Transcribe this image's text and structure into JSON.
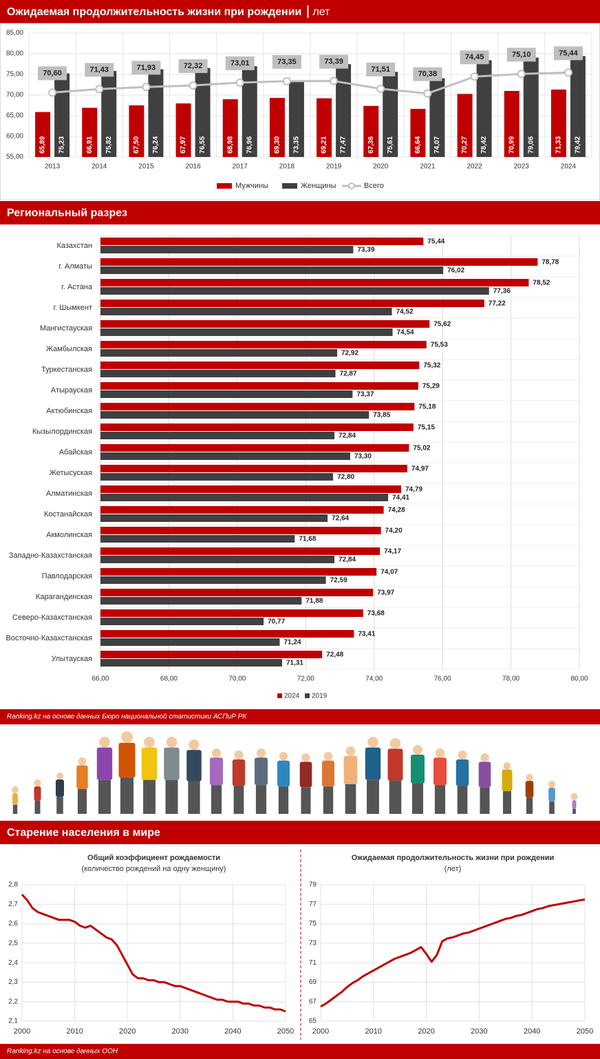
{
  "chart_data": [
    {
      "type": "bar",
      "title": "Ожидаемая продолжительность жизни при рождении",
      "unit": "лет",
      "categories": [
        "2013",
        "2014",
        "2015",
        "2016",
        "2017",
        "2018",
        "2019",
        "2020",
        "2021",
        "2022",
        "2023",
        "2024"
      ],
      "series": [
        {
          "name": "Мужчины",
          "color": "#c00000",
          "values": [
            65.89,
            66.91,
            67.5,
            67.97,
            68.98,
            69.3,
            69.21,
            67.36,
            66.64,
            70.27,
            70.99,
            71.33
          ],
          "value_labels": [
            "65,89",
            "66,91",
            "67,50",
            "67,97",
            "68,98",
            "69,30",
            "69,21",
            "67,36",
            "66,64",
            "70,27",
            "70,99",
            "71,33"
          ]
        },
        {
          "name": "Женщины",
          "color": "#404040",
          "values": [
            75.23,
            75.82,
            76.24,
            76.55,
            76.96,
            73.35,
            77.47,
            75.61,
            74.07,
            78.42,
            79.06,
            79.42
          ],
          "value_labels": [
            "75,23",
            "75,82",
            "76,24",
            "76,55",
            "76,96",
            "73,35",
            "77,47",
            "75,61",
            "74,07",
            "78,42",
            "79,06",
            "79,42"
          ]
        },
        {
          "name": "Всего",
          "type": "line",
          "color": "#bfbfbf",
          "values": [
            70.6,
            71.43,
            71.93,
            72.32,
            73.01,
            73.35,
            73.39,
            71.51,
            70.38,
            74.45,
            75.1,
            75.44
          ],
          "value_labels": [
            "70,60",
            "71,43",
            "71,93",
            "72,32",
            "73,01",
            "73,35",
            "73,39",
            "71,51",
            "70,38",
            "74,45",
            "75,10",
            "75,44"
          ]
        }
      ],
      "ylim": [
        55,
        85
      ],
      "yticks": [
        {
          "value": 55,
          "label": "55,00"
        },
        {
          "value": 60,
          "label": "60,00"
        },
        {
          "value": 65,
          "label": "65,00"
        },
        {
          "value": 70,
          "label": "70,00"
        },
        {
          "value": 75,
          "label": "75,00"
        },
        {
          "value": 80,
          "label": "80,00"
        },
        {
          "value": 85,
          "label": "85,00"
        }
      ],
      "grid": true,
      "legend": "bottom"
    },
    {
      "type": "hbar",
      "title": "Региональный разрез",
      "categories": [
        "Казахстан",
        "г. Алматы",
        "г. Астана",
        "г. Шымкент",
        "Мангистауская",
        "Жамбылская",
        "Туркестанская",
        "Атырауская",
        "Актюбинская",
        "Кызылординская",
        "Абайская",
        "Жетысуская",
        "Алматинская",
        "Костанайская",
        "Акмолинская",
        "Западно-Казахстанская",
        "Павлодарская",
        "Карагандинская",
        "Северо-Казахстанская",
        "Восточно-Казахстанская",
        "Улытауская"
      ],
      "series": [
        {
          "name": "2024",
          "color": "#c00000",
          "values": [
            75.44,
            78.78,
            78.52,
            77.22,
            75.62,
            75.53,
            75.32,
            75.29,
            75.18,
            75.15,
            75.02,
            74.97,
            74.79,
            74.28,
            74.2,
            74.17,
            74.07,
            73.97,
            73.68,
            73.41,
            72.48
          ],
          "value_labels": [
            "75,44",
            "78,78",
            "78,52",
            "77,22",
            "75,62",
            "75,53",
            "75,32",
            "75,29",
            "75,18",
            "75,15",
            "75,02",
            "74,97",
            "74,79",
            "74,28",
            "74,20",
            "74,17",
            "74,07",
            "73,97",
            "73,68",
            "73,41",
            "72,48"
          ]
        },
        {
          "name": "2019",
          "color": "#404040",
          "values": [
            73.39,
            76.02,
            77.36,
            74.52,
            74.54,
            72.92,
            72.87,
            73.37,
            73.85,
            72.84,
            73.3,
            72.8,
            74.41,
            72.64,
            71.68,
            72.84,
            72.59,
            71.88,
            70.77,
            71.24,
            71.31
          ],
          "value_labels": [
            "73,39",
            "76,02",
            "77,36",
            "74,52",
            "74,54",
            "72,92",
            "72,87",
            "73,37",
            "73,85",
            "72,84",
            "73,30",
            "72,80",
            "74,41",
            "72,64",
            "71,68",
            "72,84",
            "72,59",
            "71,88",
            "70,77",
            "71,24",
            "71,31"
          ]
        }
      ],
      "xlim": [
        66,
        80
      ],
      "xticks": [
        {
          "value": 66,
          "label": "66,00"
        },
        {
          "value": 68,
          "label": "68,00"
        },
        {
          "value": 70,
          "label": "70,00"
        },
        {
          "value": 72,
          "label": "72,00"
        },
        {
          "value": 74,
          "label": "74,00"
        },
        {
          "value": 76,
          "label": "76,00"
        },
        {
          "value": 78,
          "label": "78,00"
        },
        {
          "value": 80,
          "label": "80,00"
        }
      ],
      "grid": true,
      "legend": "bottom"
    },
    {
      "type": "line",
      "title": "Общий коэффициент рождаемости",
      "subtitle": "(количество рождений на одну женщину)",
      "color": "#c00000",
      "x": [
        2000,
        2001,
        2002,
        2003,
        2004,
        2005,
        2006,
        2007,
        2008,
        2009,
        2010,
        2011,
        2012,
        2013,
        2014,
        2015,
        2016,
        2017,
        2018,
        2019,
        2020,
        2021,
        2022,
        2023,
        2024,
        2025,
        2026,
        2027,
        2028,
        2029,
        2030,
        2031,
        2032,
        2033,
        2034,
        2035,
        2036,
        2037,
        2038,
        2039,
        2040,
        2041,
        2042,
        2043,
        2044,
        2045,
        2046,
        2047,
        2048,
        2049,
        2050
      ],
      "values": [
        2.75,
        2.72,
        2.68,
        2.66,
        2.65,
        2.64,
        2.63,
        2.62,
        2.62,
        2.62,
        2.61,
        2.59,
        2.58,
        2.59,
        2.57,
        2.55,
        2.53,
        2.52,
        2.49,
        2.44,
        2.39,
        2.34,
        2.32,
        2.32,
        2.31,
        2.31,
        2.3,
        2.3,
        2.29,
        2.28,
        2.28,
        2.27,
        2.26,
        2.25,
        2.24,
        2.23,
        2.22,
        2.21,
        2.21,
        2.2,
        2.2,
        2.2,
        2.19,
        2.19,
        2.18,
        2.18,
        2.17,
        2.17,
        2.16,
        2.16,
        2.15
      ],
      "xlim": [
        2000,
        2050
      ],
      "xticks": [
        2000,
        2010,
        2020,
        2030,
        2040,
        2050
      ],
      "ylim": [
        2.1,
        2.8
      ],
      "yticks": [
        {
          "value": 2.1,
          "label": "2,1"
        },
        {
          "value": 2.2,
          "label": "2,2"
        },
        {
          "value": 2.3,
          "label": "2,3"
        },
        {
          "value": 2.4,
          "label": "2,4"
        },
        {
          "value": 2.5,
          "label": "2,5"
        },
        {
          "value": 2.6,
          "label": "2,6"
        },
        {
          "value": 2.7,
          "label": "2,7"
        },
        {
          "value": 2.8,
          "label": "2,8"
        }
      ],
      "grid": true
    },
    {
      "type": "line",
      "title": "Ожидаемая продолжительность жизни при рождении",
      "subtitle": "(лет)",
      "color": "#c00000",
      "x": [
        2000,
        2001,
        2002,
        2003,
        2004,
        2005,
        2006,
        2007,
        2008,
        2009,
        2010,
        2011,
        2012,
        2013,
        2014,
        2015,
        2016,
        2017,
        2018,
        2019,
        2020,
        2021,
        2022,
        2023,
        2024,
        2025,
        2026,
        2027,
        2028,
        2029,
        2030,
        2031,
        2032,
        2033,
        2034,
        2035,
        2036,
        2037,
        2038,
        2039,
        2040,
        2041,
        2042,
        2043,
        2044,
        2045,
        2046,
        2047,
        2048,
        2049,
        2050
      ],
      "values": [
        66.5,
        66.8,
        67.2,
        67.6,
        68.0,
        68.5,
        68.9,
        69.2,
        69.6,
        69.9,
        70.2,
        70.5,
        70.8,
        71.1,
        71.4,
        71.6,
        71.8,
        72.0,
        72.3,
        72.6,
        71.9,
        71.1,
        71.8,
        73.2,
        73.5,
        73.6,
        73.8,
        74.0,
        74.1,
        74.3,
        74.5,
        74.7,
        74.9,
        75.1,
        75.3,
        75.5,
        75.6,
        75.8,
        75.9,
        76.1,
        76.3,
        76.5,
        76.6,
        76.8,
        76.9,
        77.0,
        77.1,
        77.2,
        77.3,
        77.4,
        77.5
      ],
      "xlim": [
        2000,
        2050
      ],
      "xticks": [
        2000,
        2010,
        2020,
        2030,
        2040,
        2050
      ],
      "ylim": [
        65,
        79
      ],
      "yticks": [
        65,
        67,
        69,
        71,
        73,
        75,
        77,
        79
      ],
      "grid": true
    }
  ],
  "section_title": "Старение населения в мире",
  "sources": [
    "Ranking.kz на основе данных Бюро национальной статистики АСПиР РК",
    "Ranking.kz на основе данных ООН"
  ]
}
